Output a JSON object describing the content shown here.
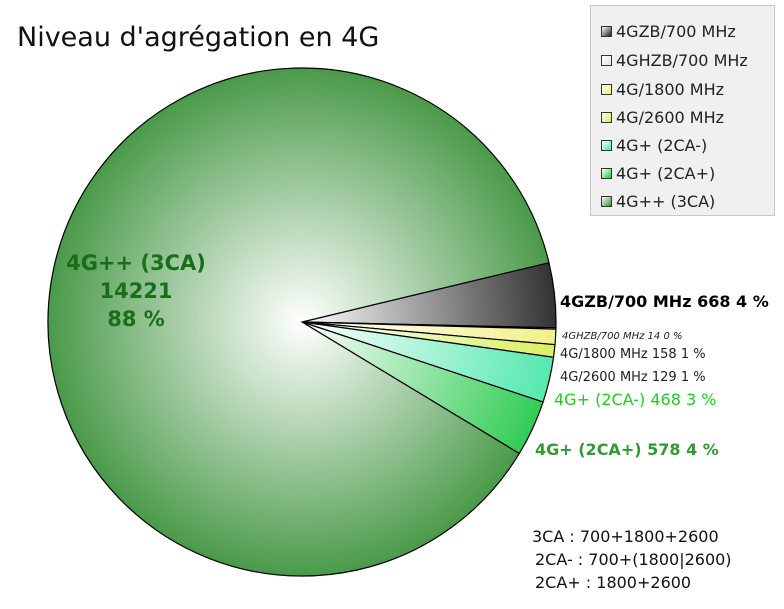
{
  "chart_data": {
    "type": "pie",
    "title": "Niveau d'agrégation en 4G",
    "legend_position": "top-right",
    "slices": [
      {
        "label": "4GZB/700 MHz",
        "value": 668,
        "percent": 4,
        "color": "#333333",
        "data_label": "4GZB/700 MHz 668 4 %",
        "label_color": "#000000"
      },
      {
        "label": "4GHZB/700 MHz",
        "value": 14,
        "percent": 0,
        "color": "#e8e8d8",
        "data_label": "4GHZB/700 MHz 14 0 %",
        "label_color": "#222222"
      },
      {
        "label": "4G/1800 MHz",
        "value": 158,
        "percent": 1,
        "color": "#f2f08a",
        "data_label": "4G/1800 MHz 158 1 %",
        "label_color": "#222222"
      },
      {
        "label": "4G/2600 MHz",
        "value": 129,
        "percent": 1,
        "color": "#d8f060",
        "data_label": "4G/2600 MHz 129 1 %",
        "label_color": "#222222"
      },
      {
        "label": "4G+ (2CA-)",
        "value": 468,
        "percent": 3,
        "color": "#55e8b0",
        "data_label": "4G+ (2CA-) 468 3 %",
        "label_color": "#22cc22"
      },
      {
        "label": "4G+ (2CA+)",
        "value": 578,
        "percent": 4,
        "color": "#33cc55",
        "data_label": "4G+ (2CA+) 578 4 %",
        "label_color": "#339933"
      },
      {
        "label": "4G++ (3CA)",
        "value": 14221,
        "percent": 88,
        "color": "#4a9a4a",
        "data_label": "4G++ (3CA)\n14221\n88 %",
        "label_color": "#1a6e1a"
      }
    ]
  },
  "notes": [
    "3CA : 700+1800+2600",
    "2CA- : 700+(1800|2600)",
    "2CA+ : 1800+2600"
  ]
}
